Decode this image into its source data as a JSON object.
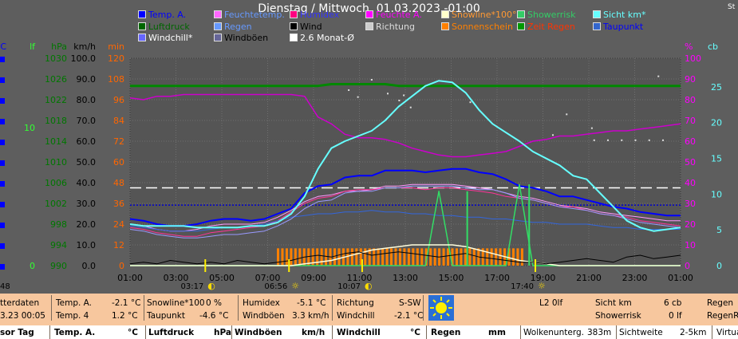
{
  "title": "Dienstag / Mittwoch, 01.03.2023  -01:00",
  "corner": "St",
  "legend": [
    {
      "label": "Temp. A.",
      "color": "#0000ff",
      "text_color": "#0000ff",
      "col": 0,
      "row": 0
    },
    {
      "label": "Feuchtetemp.",
      "color": "#ff66ff",
      "text_color": "#6699ff",
      "col": 1,
      "row": 0
    },
    {
      "label": "Humidex",
      "color": "#ff0080",
      "text_color": "#3333ff",
      "col": 2,
      "row": 0
    },
    {
      "label": "Feuchte A.",
      "color": "#ff00ff",
      "text_color": "#ff00ff",
      "col": 3,
      "row": 0
    },
    {
      "label": "Snowline*100°",
      "color": "#ffffcc",
      "text_color": "#ff9933",
      "col": 4,
      "row": 0
    },
    {
      "label": "Showerrisk",
      "color": "#33cc66",
      "text_color": "#33cc66",
      "col": 5,
      "row": 0
    },
    {
      "label": "Sicht km*",
      "color": "#66ffff",
      "text_color": "#66ffff",
      "col": 6,
      "row": 0
    },
    {
      "label": "Luftdruck",
      "color": "#006600",
      "text_color": "#006600",
      "col": 0,
      "row": 1
    },
    {
      "label": "Regen",
      "color": "#6699ff",
      "text_color": "#6699ff",
      "col": 1,
      "row": 1
    },
    {
      "label": "Wind",
      "color": "#000000",
      "text_color": "#000000",
      "col": 2,
      "row": 1
    },
    {
      "label": "Richtung",
      "color": "#cccccc",
      "text_color": "#dddddd",
      "col": 3,
      "row": 1
    },
    {
      "label": "Sonnenschein",
      "color": "#ff8000",
      "text_color": "#ff8000",
      "col": 4,
      "row": 1
    },
    {
      "label": "Zeit Regen",
      "color": "#009900",
      "text_color": "#ff3300",
      "col": 5,
      "row": 1
    },
    {
      "label": "Taupunkt",
      "color": "#3366cc",
      "text_color": "#0000ff",
      "col": 6,
      "row": 1
    },
    {
      "label": "Windchill*",
      "color": "#6666ff",
      "text_color": "#ffffff",
      "col": 0,
      "row": 2
    },
    {
      "label": "Windböen",
      "color": "#666699",
      "text_color": "#000000",
      "col": 1,
      "row": 2
    },
    {
      "label": "2.6 Monat-Ø",
      "color": "#ffffff",
      "text_color": "#ffffff",
      "col": 2,
      "row": 2
    }
  ],
  "chart_data": {
    "type": "line",
    "x_ticks": [
      "01:00",
      "03:00",
      "05:00",
      "07:00",
      "09:00",
      "11:00",
      "13:00",
      "15:00",
      "17:00",
      "19:00",
      "21:00",
      "23:00",
      "01:00"
    ],
    "axes": {
      "min": {
        "label": "min",
        "ticks": [
          "0",
          "12",
          "24",
          "36",
          "48",
          "60",
          "72",
          "84",
          "96",
          "108",
          "120"
        ],
        "color": "#ff6600"
      },
      "kmh": {
        "label": "km/h",
        "ticks": [
          "0.0",
          "10.0",
          "20.0",
          "30.0",
          "40.0",
          "50.0",
          "60.0",
          "70.0",
          "80.0",
          "90.0",
          "100.0"
        ],
        "color": "#000000"
      },
      "hpa": {
        "label": "hPa",
        "ticks": [
          "990",
          "994",
          "998",
          "1002",
          "1006",
          "1010",
          "1014",
          "1018",
          "1022",
          "1026",
          "1030"
        ],
        "color": "#007700"
      },
      "lf": {
        "label": "lf",
        "ticks": [
          "0",
          "10"
        ],
        "color": "#33ff33"
      },
      "c": {
        "label": "°C",
        "color": "#0000ff"
      },
      "pct": {
        "label": "%",
        "ticks": [
          "0",
          "10",
          "20",
          "30",
          "40",
          "50",
          "60",
          "70",
          "80",
          "90",
          "100"
        ],
        "color": "#ff00ff"
      },
      "cb": {
        "label": "cb",
        "ticks": [
          "0",
          "5",
          "10",
          "15",
          "20",
          "25"
        ],
        "color": "#66ffff"
      }
    },
    "ylim_min": [
      0,
      120
    ],
    "series": [
      {
        "name": "Temp. A.",
        "color": "#0000ff",
        "width": 2,
        "y": [
          27,
          26,
          24,
          23,
          23,
          24,
          26,
          27,
          27,
          26,
          27,
          30,
          33,
          42,
          46,
          47,
          51,
          52,
          52,
          55,
          55,
          55,
          54,
          55,
          56,
          56,
          54,
          53,
          50,
          46,
          45,
          43,
          40,
          40,
          38,
          36,
          34,
          33,
          31,
          30,
          29,
          29
        ]
      },
      {
        "name": "Feuchtetemp.",
        "color": "#ff99ff",
        "width": 1,
        "y": [
          24,
          23,
          21,
          20,
          20,
          21,
          23,
          24,
          24,
          24,
          25,
          28,
          32,
          37,
          40,
          41,
          43,
          43,
          44,
          46,
          46,
          47,
          47,
          47,
          47,
          46,
          45,
          44,
          42,
          40,
          39,
          37,
          35,
          34,
          33,
          31,
          30,
          29,
          28,
          27,
          26,
          26
        ]
      },
      {
        "name": "Humidex",
        "color": "#ff3399",
        "width": 1,
        "y": [
          22,
          21,
          19,
          18,
          17,
          17,
          19,
          20,
          21,
          22,
          23,
          26,
          31,
          36,
          39,
          40,
          43,
          44,
          44,
          45,
          45,
          45,
          44,
          45,
          45,
          44,
          43,
          42,
          40,
          39,
          38,
          36,
          34,
          34,
          32,
          30,
          29,
          28,
          26,
          25,
          24,
          23
        ]
      },
      {
        "name": "Taupunkt",
        "color": "#3366dd",
        "width": 1,
        "y": [
          23,
          22,
          21,
          20,
          20,
          20,
          21,
          22,
          22,
          23,
          24,
          26,
          28,
          29,
          30,
          30,
          31,
          31,
          32,
          31,
          31,
          30,
          30,
          29,
          29,
          28,
          28,
          27,
          27,
          26,
          25,
          25,
          24,
          24,
          24,
          23,
          22,
          22,
          21,
          21,
          21,
          21
        ]
      },
      {
        "name": "Windchill*",
        "color": "#9999ff",
        "width": 1,
        "y": [
          21,
          20,
          18,
          17,
          16,
          16,
          17,
          18,
          18,
          19,
          20,
          23,
          27,
          33,
          37,
          38,
          42,
          43,
          43,
          45,
          45,
          46,
          46,
          46,
          46,
          45,
          44,
          44,
          42,
          39,
          38,
          36,
          34,
          33,
          32,
          30,
          29,
          27,
          25,
          24,
          23,
          22
        ]
      },
      {
        "name": "Feuchte A.",
        "color": "#cc00cc",
        "width": 1.5,
        "y": [
          97,
          96,
          98,
          98,
          99,
          99,
          99,
          99,
          99,
          99,
          99,
          99,
          99,
          98,
          86,
          82,
          76,
          74,
          74,
          73,
          71,
          68,
          66,
          64,
          63,
          63,
          64,
          65,
          66,
          69,
          72,
          73,
          75,
          75,
          76,
          77,
          78,
          78,
          79,
          80,
          81,
          82
        ]
      },
      {
        "name": "Luftdruck",
        "color": "#008800",
        "width": 3,
        "y": [
          104,
          104,
          104,
          104,
          104,
          104,
          104,
          104,
          104,
          104,
          104,
          104,
          104,
          104,
          104,
          105,
          105,
          105,
          105,
          105,
          104,
          104,
          104,
          104,
          104,
          104,
          104,
          104,
          104,
          104,
          104,
          104,
          104,
          104,
          104,
          104,
          104,
          104,
          104,
          104,
          104,
          104
        ]
      },
      {
        "name": "Sicht km*",
        "color": "#66ffff",
        "width": 2,
        "y": [
          24,
          23,
          23,
          23,
          23,
          22,
          22,
          22,
          22,
          23,
          23,
          25,
          30,
          40,
          56,
          68,
          72,
          75,
          78,
          84,
          92,
          98,
          104,
          107,
          106,
          100,
          90,
          82,
          77,
          72,
          66,
          62,
          58,
          52,
          50,
          42,
          34,
          26,
          22,
          20,
          21,
          22
        ]
      },
      {
        "name": "Showerrisk",
        "color": "#33dd66",
        "width": 1.5,
        "y": [
          0,
          0,
          0,
          0,
          0,
          0,
          0,
          0,
          0,
          0,
          0,
          0,
          0,
          0,
          0,
          0,
          0,
          0,
          0,
          0,
          0,
          0,
          0,
          43,
          0,
          0,
          0,
          0,
          0,
          47,
          0,
          0,
          0,
          0,
          0,
          0,
          0,
          0,
          0,
          0,
          0,
          0
        ]
      },
      {
        "name": "Snowline*100°",
        "color": "#ffffdd",
        "width": 1.5,
        "y": [
          0,
          0,
          0,
          0,
          0,
          0,
          0,
          0,
          0,
          0,
          0,
          0,
          0,
          1,
          2,
          3,
          5,
          7,
          9,
          10,
          11,
          12,
          12,
          12,
          12,
          11,
          9,
          7,
          5,
          3,
          2,
          1,
          0,
          0,
          0,
          0,
          0,
          0,
          0,
          0,
          0,
          0
        ]
      },
      {
        "name": "Wind",
        "color": "#000000",
        "width": 1,
        "y": [
          1,
          2,
          1,
          3,
          2,
          1,
          2,
          1,
          3,
          2,
          1,
          2,
          3,
          5,
          6,
          5,
          7,
          8,
          6,
          7,
          8,
          7,
          6,
          5,
          6,
          7,
          5,
          4,
          3,
          2,
          2,
          1,
          2,
          3,
          4,
          3,
          2,
          5,
          6,
          4,
          5,
          6
        ]
      }
    ],
    "reference_lines": [
      {
        "name": "2.6 Monat-Ø",
        "color": "#ffffff",
        "y": 45,
        "dash": "14,6"
      },
      {
        "name": "Taupunkt Ø",
        "color": "#0000cc",
        "y": 35,
        "dash": "2,2"
      }
    ],
    "sun_events": [
      {
        "time": "03:17",
        "kind": "moonrise"
      },
      {
        "time": "06:56",
        "kind": "sunrise"
      },
      {
        "time": "10:07",
        "kind": "moonset"
      },
      {
        "time": "17:40",
        "kind": "sunset"
      }
    ],
    "left_cut_label": "48"
  },
  "panel": {
    "row1": [
      {
        "label": "tterdaten",
        "value": ""
      },
      {
        "label": "Temp. A.",
        "value": "-2.1 °C"
      },
      {
        "label": "Snowline*100",
        "value": "0 %"
      },
      {
        "label": "Humidex",
        "value": "-5.1 °C"
      },
      {
        "label": "Richtung",
        "value": "S-SW"
      },
      {
        "label": "L2 0lf",
        "value": ""
      },
      {
        "label": "Sicht km",
        "value": "6 cb"
      },
      {
        "label": "Regen",
        "value": ""
      }
    ],
    "row2": [
      {
        "label": "3.23 00:05",
        "value": ""
      },
      {
        "label": "Temp. 4",
        "value": "1.2 °C"
      },
      {
        "label": "Taupunkt",
        "value": "-4.6 °C"
      },
      {
        "label": "Windböen",
        "value": "3.3 km/h"
      },
      {
        "label": "Windchill",
        "value": "-2.1 °C"
      },
      {
        "label": "Showerrisk",
        "value": "0 lf"
      },
      {
        "label": "RegenR",
        "value": ""
      }
    ],
    "row3": [
      "sor Tag",
      "Temp. A.",
      "°C",
      "Luftdruck",
      "hPa",
      "Windböen",
      "km/h",
      "Windchill",
      "°C",
      "Regen",
      "mm",
      "Wolkenunterg.",
      "383m",
      "Sichtweite",
      "2-5km",
      "Virtual"
    ]
  }
}
